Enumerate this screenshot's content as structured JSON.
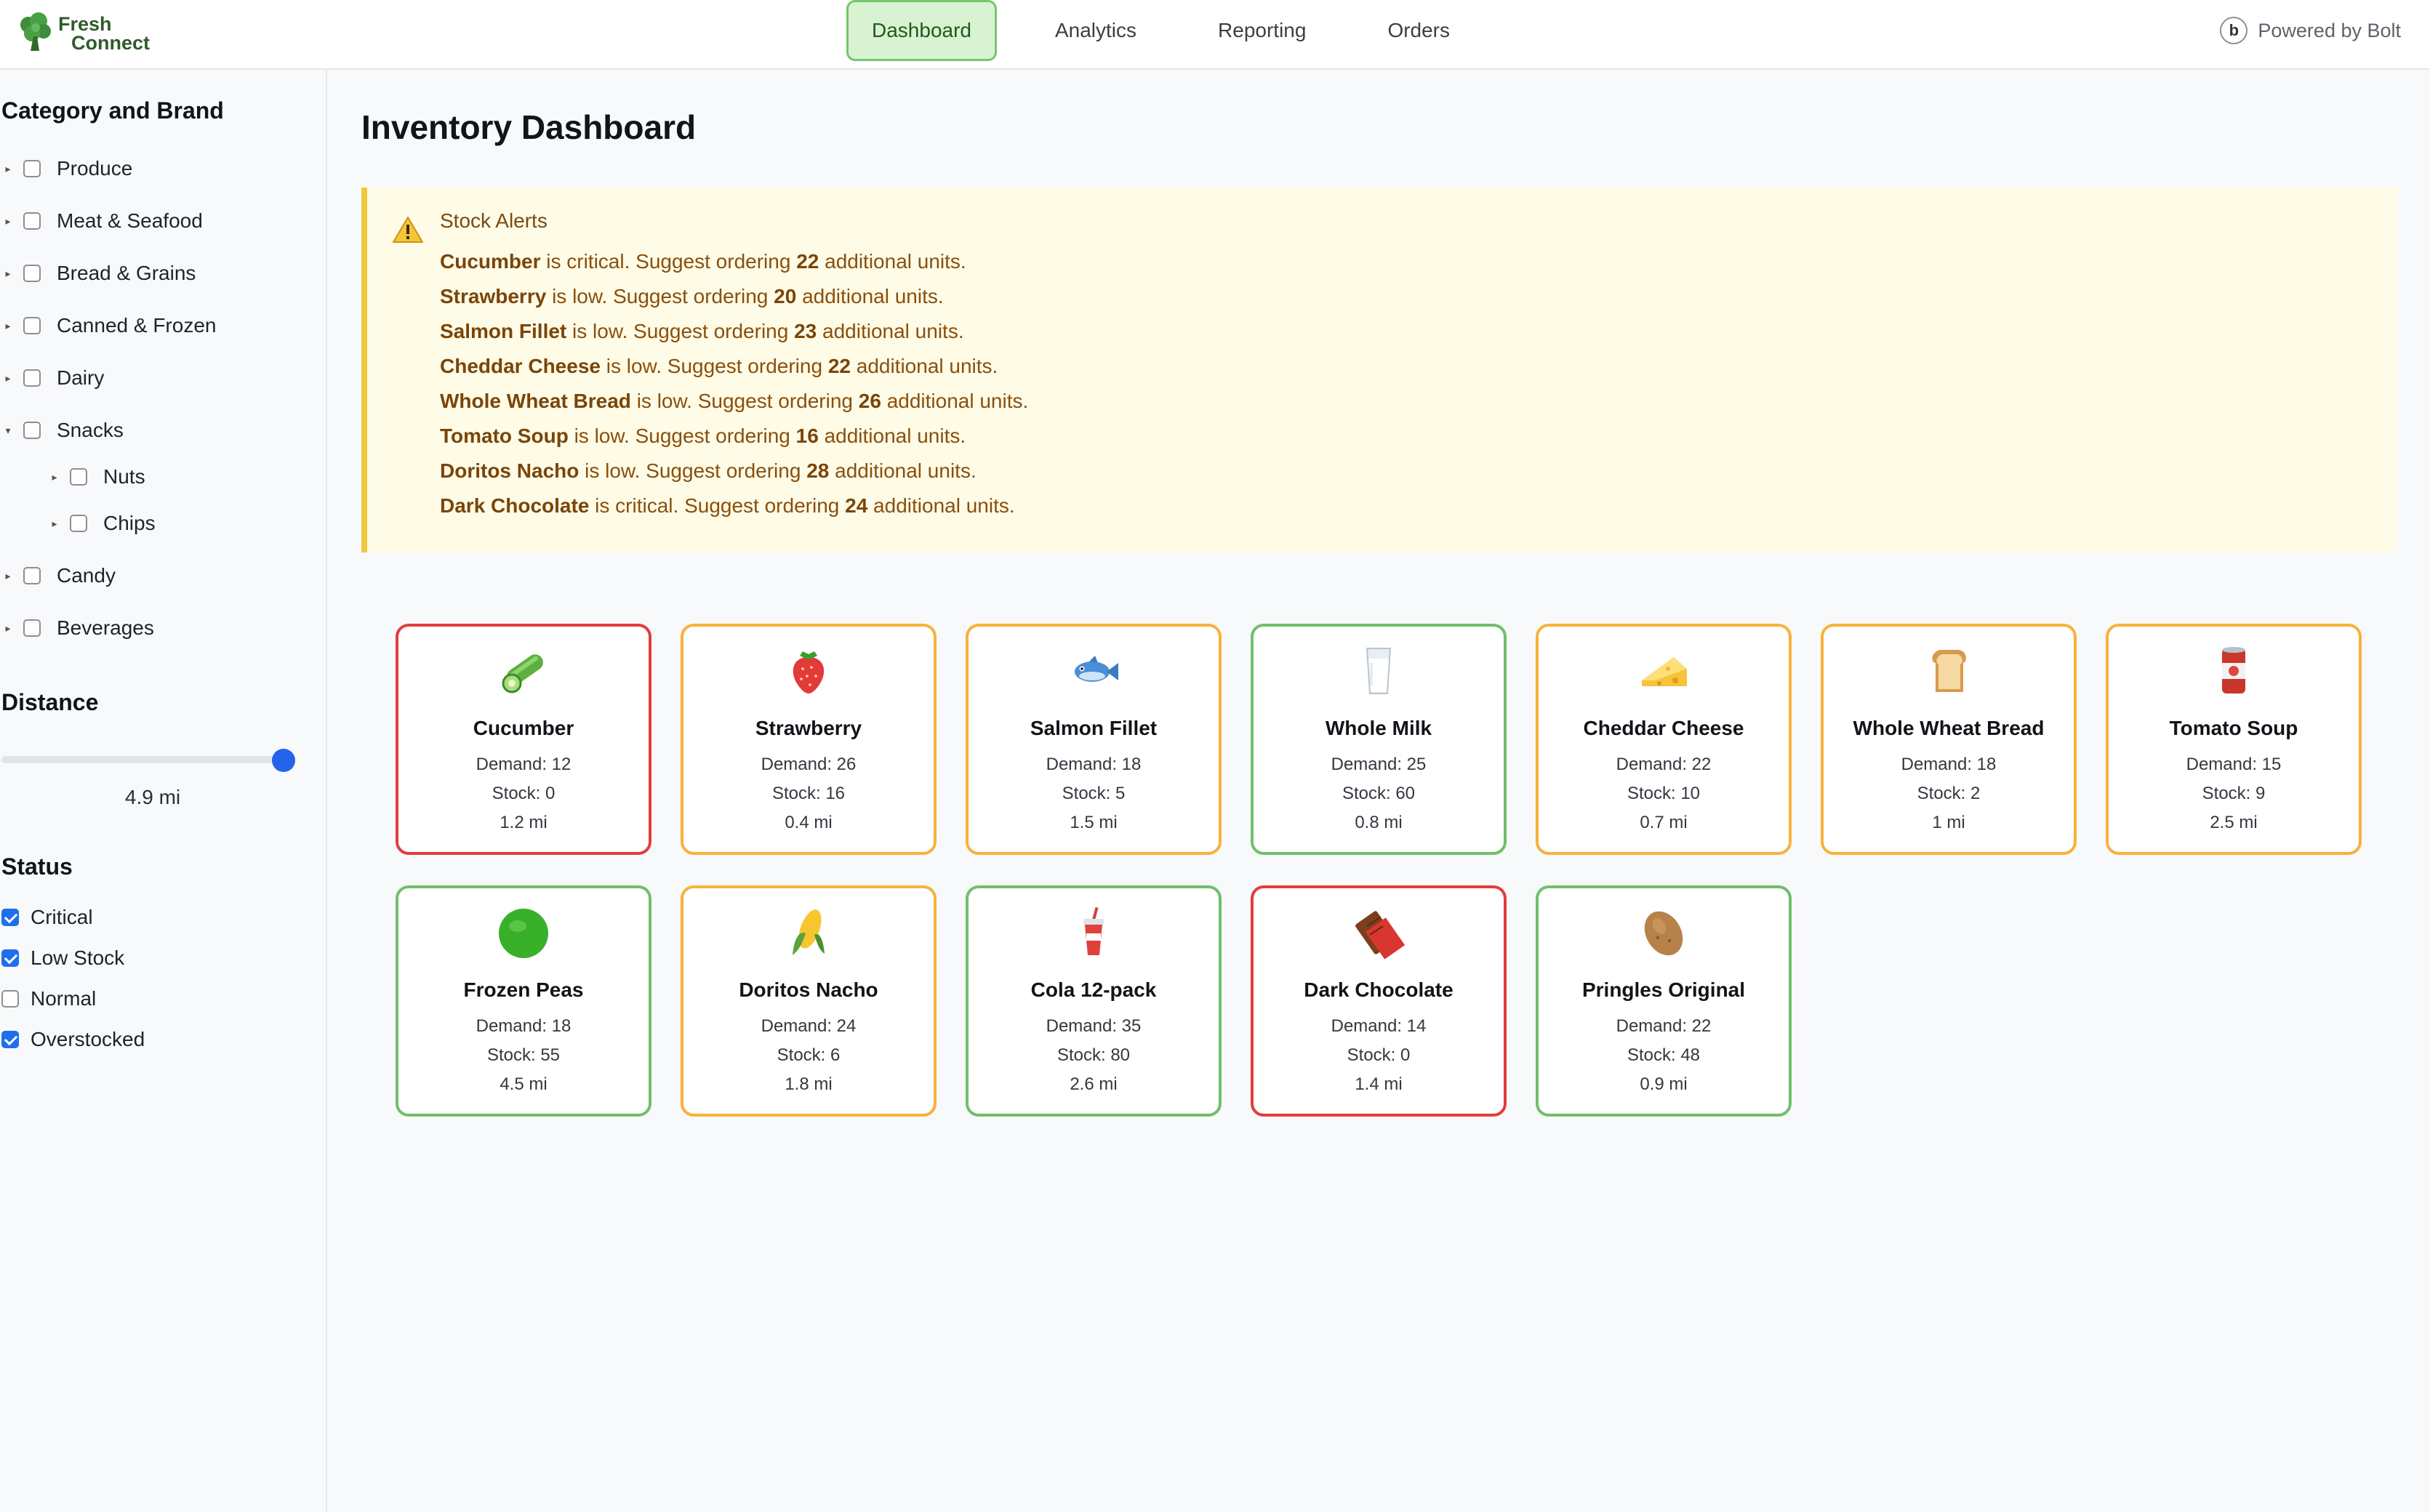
{
  "brand": {
    "line1": "Fresh",
    "line2": "Connect"
  },
  "nav": {
    "tabs": [
      {
        "label": "Dashboard"
      },
      {
        "label": "Analytics"
      },
      {
        "label": "Reporting"
      },
      {
        "label": "Orders"
      }
    ],
    "active": "Dashboard"
  },
  "powered_by": {
    "badge": "b",
    "label": "Powered by Bolt"
  },
  "sidebar": {
    "category_heading": "Category and Brand",
    "categories": [
      {
        "label": "Produce",
        "expanded": false
      },
      {
        "label": "Meat & Seafood",
        "expanded": false
      },
      {
        "label": "Bread & Grains",
        "expanded": false
      },
      {
        "label": "Canned & Frozen",
        "expanded": false
      },
      {
        "label": "Dairy",
        "expanded": false
      },
      {
        "label": "Snacks",
        "expanded": true,
        "children": [
          {
            "label": "Nuts"
          },
          {
            "label": "Chips"
          }
        ]
      },
      {
        "label": "Candy",
        "expanded": false
      },
      {
        "label": "Beverages",
        "expanded": false
      }
    ],
    "distance_heading": "Distance",
    "distance_value": "4.9 mi",
    "distance_fraction": 0.98,
    "status_heading": "Status",
    "statuses": [
      {
        "label": "Critical",
        "checked": true
      },
      {
        "label": "Low Stock",
        "checked": true
      },
      {
        "label": "Normal",
        "checked": false
      },
      {
        "label": "Overstocked",
        "checked": true
      }
    ]
  },
  "main": {
    "title": "Inventory Dashboard",
    "alerts": {
      "title": "Stock Alerts",
      "lines": [
        {
          "item": "Cucumber",
          "pre": " is critical. Suggest ordering ",
          "qty": "22",
          "post": " additional units."
        },
        {
          "item": "Strawberry",
          "pre": " is low. Suggest ordering ",
          "qty": "20",
          "post": " additional units."
        },
        {
          "item": "Salmon Fillet",
          "pre": " is low. Suggest ordering ",
          "qty": "23",
          "post": " additional units."
        },
        {
          "item": "Cheddar Cheese",
          "pre": " is low. Suggest ordering ",
          "qty": "22",
          "post": " additional units."
        },
        {
          "item": "Whole Wheat Bread",
          "pre": " is low. Suggest ordering ",
          "qty": "26",
          "post": " additional units."
        },
        {
          "item": "Tomato Soup",
          "pre": " is low. Suggest ordering ",
          "qty": "16",
          "post": " additional units."
        },
        {
          "item": "Doritos Nacho",
          "pre": " is low. Suggest ordering ",
          "qty": "28",
          "post": " additional units."
        },
        {
          "item": "Dark Chocolate",
          "pre": " is critical. Suggest ordering ",
          "qty": "24",
          "post": " additional units."
        }
      ]
    },
    "items": [
      {
        "name": "Cucumber",
        "icon": "cucumber-icon",
        "demand": "Demand: 12",
        "stock": "Stock: 0",
        "distance": "1.2 mi",
        "status": "critical"
      },
      {
        "name": "Strawberry",
        "icon": "strawberry-icon",
        "demand": "Demand: 26",
        "stock": "Stock: 16",
        "distance": "0.4 mi",
        "status": "low"
      },
      {
        "name": "Salmon Fillet",
        "icon": "fish-icon",
        "demand": "Demand: 18",
        "stock": "Stock: 5",
        "distance": "1.5 mi",
        "status": "low"
      },
      {
        "name": "Whole Milk",
        "icon": "milk-icon",
        "demand": "Demand: 25",
        "stock": "Stock: 60",
        "distance": "0.8 mi",
        "status": "normal"
      },
      {
        "name": "Cheddar Cheese",
        "icon": "cheese-icon",
        "demand": "Demand: 22",
        "stock": "Stock: 10",
        "distance": "0.7 mi",
        "status": "low"
      },
      {
        "name": "Whole Wheat Bread",
        "icon": "bread-icon",
        "demand": "Demand: 18",
        "stock": "Stock: 2",
        "distance": "1 mi",
        "status": "low"
      },
      {
        "name": "Tomato Soup",
        "icon": "soup-can-icon",
        "demand": "Demand: 15",
        "stock": "Stock: 9",
        "distance": "2.5 mi",
        "status": "low"
      },
      {
        "name": "Frozen Peas",
        "icon": "green-circle-icon",
        "demand": "Demand: 18",
        "stock": "Stock: 55",
        "distance": "4.5 mi",
        "status": "normal"
      },
      {
        "name": "Doritos Nacho",
        "icon": "corn-icon",
        "demand": "Demand: 24",
        "stock": "Stock: 6",
        "distance": "1.8 mi",
        "status": "low"
      },
      {
        "name": "Cola 12-pack",
        "icon": "cup-with-straw-icon",
        "demand": "Demand: 35",
        "stock": "Stock: 80",
        "distance": "2.6 mi",
        "status": "normal"
      },
      {
        "name": "Dark Chocolate",
        "icon": "chocolate-bar-icon",
        "demand": "Demand: 14",
        "stock": "Stock: 0",
        "distance": "1.4 mi",
        "status": "critical"
      },
      {
        "name": "Pringles Original",
        "icon": "potato-icon",
        "demand": "Demand: 22",
        "stock": "Stock: 48",
        "distance": "0.9 mi",
        "status": "normal"
      }
    ]
  },
  "colors": {
    "critical": "#e33c3c",
    "low": "#f7b23b",
    "normal": "#6fc06a",
    "accent": "#2563eb",
    "alert_bg": "#fefbe7",
    "alert_text": "#8a4f0b"
  }
}
